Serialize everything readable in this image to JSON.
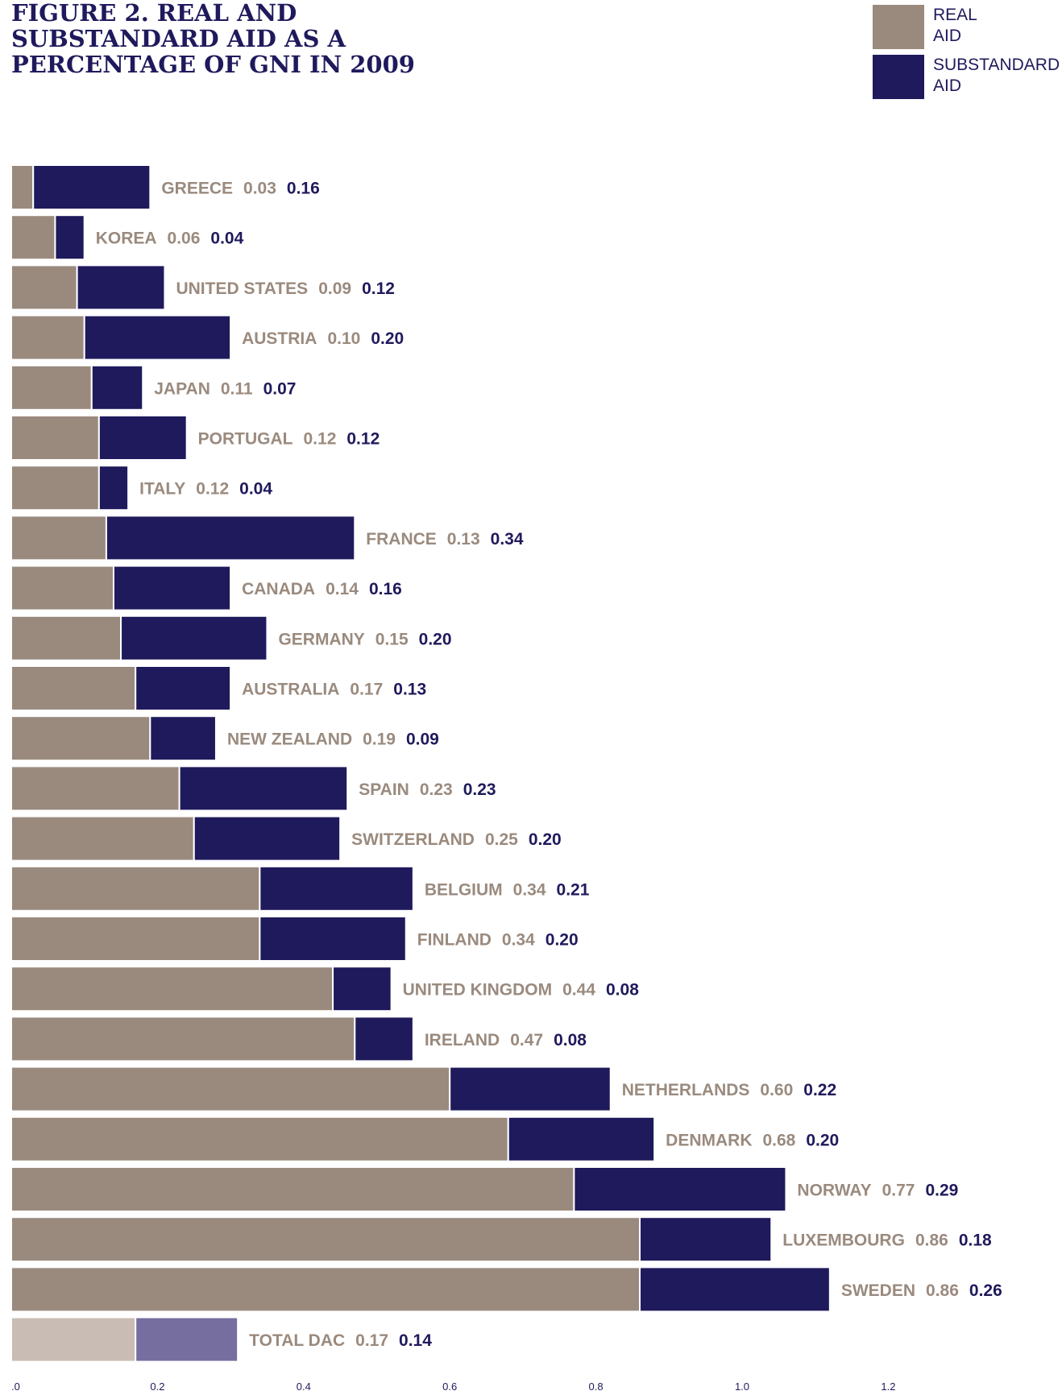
{
  "title": "FIGURE 2. REAL AND SUBSTANDARD AID AS A PERCENTAGE OF GNI IN 2009",
  "legend": {
    "real": {
      "line1": "REAL",
      "line2": "AID"
    },
    "substandard": {
      "line1": "SUBSTANDARD",
      "line2": "AID"
    }
  },
  "colors": {
    "real": "#9a8a7e",
    "substandard": "#1f1a5c",
    "total_real": "#c8bcb4",
    "total_substandard": "#756e9e"
  },
  "chart_data": {
    "type": "bar",
    "orientation": "horizontal",
    "stacked": true,
    "categories": [
      "GREECE",
      "KOREA",
      "UNITED STATES",
      "AUSTRIA",
      "JAPAN",
      "PORTUGAL",
      "ITALY",
      "FRANCE",
      "CANADA",
      "GERMANY",
      "AUSTRALIA",
      "NEW ZEALAND",
      "SPAIN",
      "SWITZERLAND",
      "BELGIUM",
      "FINLAND",
      "UNITED KINGDOM",
      "IRELAND",
      "NETHERLANDS",
      "DENMARK",
      "NORWAY",
      "LUXEMBOURG",
      "SWEDEN",
      "TOTAL DAC"
    ],
    "series": [
      {
        "name": "REAL AID",
        "values": [
          0.03,
          0.06,
          0.09,
          0.1,
          0.11,
          0.12,
          0.12,
          0.13,
          0.14,
          0.15,
          0.17,
          0.19,
          0.23,
          0.25,
          0.34,
          0.34,
          0.44,
          0.47,
          0.6,
          0.68,
          0.77,
          0.86,
          0.86,
          0.17
        ]
      },
      {
        "name": "SUBSTANDARD AID",
        "values": [
          0.16,
          0.04,
          0.12,
          0.2,
          0.07,
          0.12,
          0.04,
          0.34,
          0.16,
          0.2,
          0.13,
          0.09,
          0.23,
          0.2,
          0.21,
          0.2,
          0.08,
          0.08,
          0.22,
          0.2,
          0.29,
          0.18,
          0.26,
          0.14
        ]
      }
    ],
    "value_labels": {
      "real": [
        "0.03",
        "0.06",
        "0.09",
        "0.10",
        "0.11",
        "0.12",
        "0.12",
        "0.13",
        "0.14",
        "0.15",
        "0.17",
        "0.19",
        "0.23",
        "0.25",
        "0.34",
        "0.34",
        "0.44",
        "0.47",
        "0.60",
        "0.68",
        "0.77",
        "0.86",
        "0.86",
        "0.17"
      ],
      "substandard": [
        "0.16",
        "0.04",
        "0.12",
        "0.20",
        "0.07",
        "0.12",
        "0.04",
        "0.34",
        "0.16",
        "0.20",
        "0.13",
        "0.09",
        "0.23",
        "0.20",
        "0.21",
        "0.20",
        "0.08",
        "0.08",
        "0.22",
        "0.20",
        "0.29",
        "0.18",
        "0.26",
        "0.14"
      ]
    },
    "x_ticks": [
      ".0",
      "0.2",
      "0.4",
      "0.6",
      "0.8",
      "1.0",
      "1.2"
    ],
    "xlim": [
      0,
      1.45
    ],
    "highlight_category": "TOTAL DAC",
    "grid": false,
    "legend_position": "top-right"
  }
}
